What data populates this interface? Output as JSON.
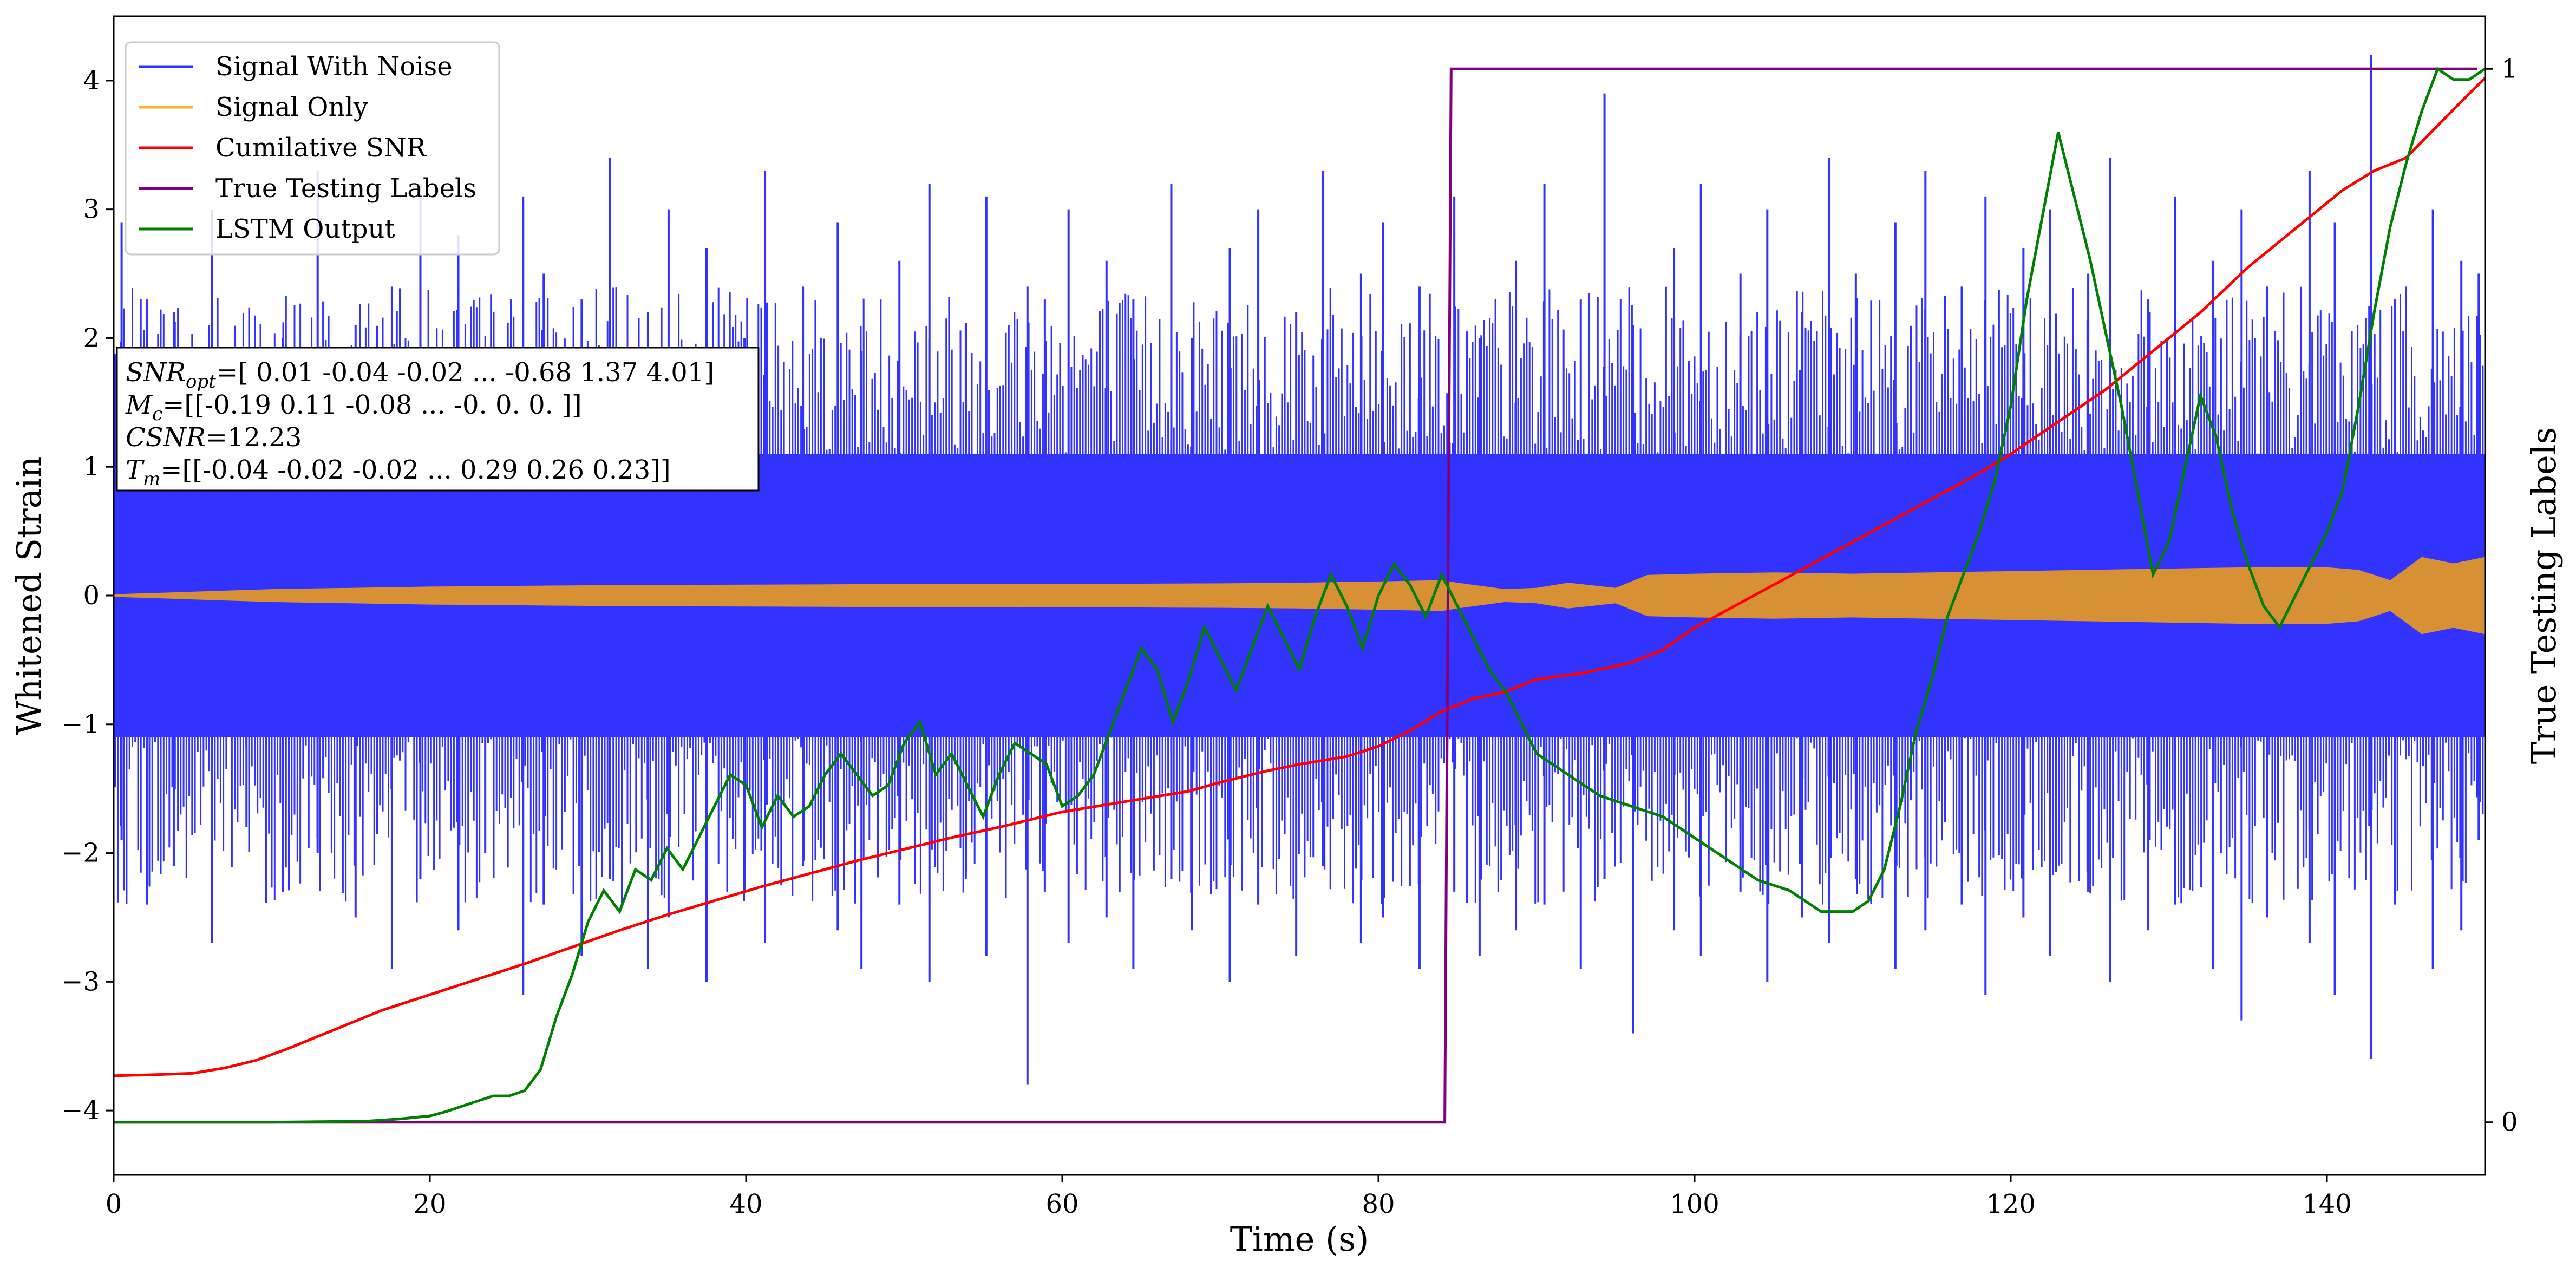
{
  "chart_data": {
    "type": "line",
    "xlabel": "Time (s)",
    "ylabel": "Whitened Strain",
    "y2label": "True Testing Labels",
    "xlim": [
      0,
      150
    ],
    "ylim": [
      -4.5,
      4.5
    ],
    "y2lim": [
      -0.05,
      1.05
    ],
    "x_ticks": [
      0,
      20,
      40,
      60,
      80,
      100,
      120,
      140
    ],
    "y_ticks": [
      -4,
      -3,
      -2,
      -1,
      0,
      1,
      2,
      3,
      4
    ],
    "y2_ticks": [
      0,
      1
    ],
    "grid": false,
    "legend_position": "top-left",
    "legend": [
      {
        "label": "Signal With Noise",
        "color": "#3333ff"
      },
      {
        "label": "Signal Only",
        "color": "#ffb22e"
      },
      {
        "label": "Cumilative SNR",
        "color": "#ff0000"
      },
      {
        "label": "True Testing Labels",
        "color": "#800080"
      },
      {
        "label": "LSTM Output",
        "color": "#008000"
      }
    ],
    "annotation": {
      "lines": [
        {
          "sym": "SNR",
          "sub": "opt",
          "rest": "=[ 0.01 -0.04 -0.02 ... -0.68  1.37  4.01]"
        },
        {
          "sym": "M",
          "sub": "c",
          "rest": "=[[-0.19  0.11 -0.08 ... -0.    0.    0.  ]]"
        },
        {
          "sym": "CSNR",
          "sub": "",
          "rest": "=12.23"
        },
        {
          "sym": "T",
          "sub": "m",
          "rest": "=[[-0.04 -0.02 -0.02 ...  0.29  0.26  0.23]]"
        }
      ]
    },
    "series": [
      {
        "name": "Signal With Noise",
        "color": "#3333ff",
        "axis": "left",
        "band": {
          "x": [
            0,
            10,
            20,
            30,
            40,
            50,
            60,
            70,
            80,
            90,
            100,
            110,
            120,
            130,
            140,
            150
          ],
          "upper": [
            1.1,
            1.1,
            1.1,
            1.1,
            1.1,
            1.1,
            1.1,
            1.1,
            1.1,
            1.1,
            1.1,
            1.1,
            1.1,
            1.1,
            1.1,
            1.1
          ],
          "lower": [
            -1.1,
            -1.1,
            -1.1,
            -1.1,
            -1.1,
            -1.1,
            -1.1,
            -1.1,
            -1.1,
            -1.1,
            -1.1,
            -1.1,
            -1.1,
            -1.1,
            -1.1,
            -1.1
          ]
        },
        "spike_x": [
          0.5,
          2.1,
          3.8,
          6.2,
          8.4,
          10.7,
          12.9,
          15.3,
          17.6,
          19.4,
          21.8,
          23.5,
          25.9,
          27.2,
          29.6,
          31.4,
          33.8,
          35.1,
          37.5,
          39.9,
          41.2,
          43.6,
          45.8,
          47.3,
          49.7,
          51.6,
          53.9,
          55.2,
          57.8,
          58.9,
          60.4,
          62.8,
          64.5,
          66.9,
          68.2,
          70.6,
          72.4,
          74.8,
          76.5,
          78.9,
          80.3,
          82.6,
          84.8,
          86.4,
          88.7,
          90.5,
          92.8,
          94.3,
          96.1,
          98.7,
          100.4,
          102.9,
          104.6,
          106.8,
          108.5,
          110.2,
          112.7,
          114.6,
          116.9,
          118.4,
          120.8,
          122.5,
          124.9,
          126.3,
          128.7,
          130.4,
          132.8,
          134.6,
          136.2,
          138.9,
          140.5,
          142.8,
          144.3,
          146.7,
          148.5,
          149.6
        ],
        "spike_hi": [
          2.9,
          2.3,
          2.2,
          3.0,
          1.8,
          2.0,
          3.3,
          2.1,
          2.4,
          3.2,
          2.8,
          1.9,
          3.1,
          2.5,
          2.3,
          3.4,
          2.2,
          3.0,
          2.7,
          2.0,
          3.3,
          2.4,
          2.9,
          1.9,
          2.6,
          3.2,
          2.1,
          3.1,
          2.4,
          2.3,
          3.0,
          2.6,
          2.3,
          3.2,
          2.0,
          2.7,
          3.0,
          2.2,
          3.3,
          2.5,
          2.9,
          2.4,
          3.1,
          2.0,
          2.6,
          3.2,
          2.3,
          3.9,
          2.1,
          2.7,
          3.2,
          2.5,
          3.0,
          2.2,
          3.4,
          2.5,
          2.9,
          3.3,
          2.4,
          3.1,
          2.7,
          3.0,
          2.5,
          3.4,
          2.3,
          3.1,
          2.6,
          3.0,
          2.4,
          3.3,
          2.9,
          4.2,
          2.3,
          3.0,
          2.6,
          2.5
        ],
        "spike_lo": [
          -1.9,
          -2.4,
          -2.1,
          -2.7,
          -1.8,
          -2.3,
          -2.0,
          -2.5,
          -2.9,
          -2.2,
          -2.6,
          -2.0,
          -3.1,
          -2.4,
          -2.8,
          -2.2,
          -2.9,
          -2.5,
          -3.0,
          -2.3,
          -2.7,
          -2.1,
          -2.6,
          -2.9,
          -2.4,
          -3.0,
          -2.2,
          -2.8,
          -3.8,
          -2.3,
          -2.7,
          -2.5,
          -2.9,
          -2.2,
          -2.6,
          -3.0,
          -2.4,
          -2.8,
          -2.1,
          -2.7,
          -2.5,
          -2.9,
          -2.3,
          -2.8,
          -2.6,
          -2.4,
          -2.9,
          -2.2,
          -3.4,
          -2.6,
          -2.8,
          -2.3,
          -3.0,
          -2.5,
          -2.7,
          -2.2,
          -2.9,
          -2.6,
          -2.4,
          -3.1,
          -2.5,
          -2.8,
          -2.3,
          -3.0,
          -2.6,
          -2.4,
          -2.9,
          -3.3,
          -2.5,
          -2.7,
          -3.1,
          -3.6,
          -2.4,
          -2.9,
          -2.6,
          -1.9
        ]
      },
      {
        "name": "Signal Only",
        "color": "#ffb22e",
        "axis": "left",
        "envelope": {
          "x": [
            0,
            5,
            10,
            20,
            30,
            40,
            50,
            60,
            70,
            75,
            80,
            84,
            85,
            88,
            90,
            92,
            95,
            97,
            100,
            105,
            110,
            115,
            120,
            125,
            130,
            135,
            140,
            142,
            144,
            146,
            148,
            150
          ],
          "amp": [
            0.01,
            0.03,
            0.05,
            0.07,
            0.08,
            0.085,
            0.09,
            0.09,
            0.095,
            0.1,
            0.11,
            0.12,
            0.1,
            0.05,
            0.06,
            0.1,
            0.06,
            0.16,
            0.17,
            0.18,
            0.17,
            0.18,
            0.19,
            0.2,
            0.21,
            0.22,
            0.22,
            0.2,
            0.12,
            0.3,
            0.25,
            0.3
          ]
        }
      },
      {
        "name": "Cumilative SNR",
        "color": "#ff0000",
        "axis": "left",
        "x": [
          0,
          3,
          5,
          7,
          9,
          11,
          13,
          15,
          17,
          20,
          23,
          26,
          29,
          32,
          35,
          38,
          41,
          44,
          47,
          50,
          53,
          56,
          60,
          63,
          65,
          68,
          70,
          73,
          75,
          78,
          80,
          82,
          84,
          86,
          88,
          90,
          93,
          96,
          98,
          100,
          103,
          106,
          109,
          112,
          115,
          118,
          120,
          123,
          126,
          129,
          132,
          135,
          137,
          139,
          141,
          143,
          145,
          147,
          149,
          150
        ],
        "y": [
          -3.73,
          -3.72,
          -3.71,
          -3.67,
          -3.61,
          -3.52,
          -3.42,
          -3.32,
          -3.22,
          -3.1,
          -2.98,
          -2.86,
          -2.73,
          -2.6,
          -2.48,
          -2.37,
          -2.26,
          -2.16,
          -2.06,
          -1.97,
          -1.88,
          -1.8,
          -1.68,
          -1.62,
          -1.58,
          -1.52,
          -1.45,
          -1.36,
          -1.31,
          -1.25,
          -1.17,
          -1.05,
          -0.9,
          -0.8,
          -0.75,
          -0.65,
          -0.6,
          -0.52,
          -0.42,
          -0.25,
          -0.05,
          0.15,
          0.35,
          0.55,
          0.75,
          0.95,
          1.1,
          1.35,
          1.6,
          1.9,
          2.2,
          2.55,
          2.75,
          2.95,
          3.15,
          3.3,
          3.4,
          3.65,
          3.9,
          4.02
        ]
      },
      {
        "name": "True Testing Labels",
        "color": "#800080",
        "axis": "right",
        "x": [
          0,
          84.2,
          84.6,
          149.5
        ],
        "y": [
          0,
          0,
          1,
          1
        ]
      },
      {
        "name": "LSTM Output",
        "color": "#008000",
        "axis": "right",
        "x": [
          0,
          10,
          16,
          18,
          20,
          21,
          22,
          23,
          24,
          25,
          26,
          27,
          28,
          29,
          30,
          31,
          32,
          33,
          34,
          35,
          36,
          37,
          38,
          39,
          40,
          41,
          42,
          43,
          44,
          45,
          46,
          47,
          48,
          49,
          50,
          51,
          52,
          53,
          54,
          55,
          56,
          57,
          58,
          59,
          60,
          61,
          62,
          63,
          64,
          65,
          66,
          67,
          68,
          69,
          70,
          71,
          72,
          73,
          74,
          75,
          76,
          77,
          78,
          79,
          80,
          81,
          82,
          83,
          84,
          85,
          86,
          87,
          88,
          89,
          90,
          92,
          94,
          96,
          98,
          100,
          102,
          104,
          106,
          108,
          110,
          111,
          112,
          113,
          114,
          115,
          116,
          117,
          118,
          119,
          120,
          121,
          122,
          123,
          124,
          125,
          126,
          127,
          128,
          129,
          130,
          131,
          132,
          133,
          134,
          135,
          136,
          137,
          138,
          139,
          140,
          141,
          142,
          143,
          144,
          145,
          146,
          147,
          148,
          149,
          150
        ],
        "y": [
          0,
          0,
          0.001,
          0.003,
          0.006,
          0.01,
          0.015,
          0.02,
          0.025,
          0.025,
          0.03,
          0.05,
          0.1,
          0.14,
          0.19,
          0.22,
          0.2,
          0.24,
          0.23,
          0.26,
          0.24,
          0.27,
          0.3,
          0.33,
          0.32,
          0.28,
          0.31,
          0.29,
          0.3,
          0.33,
          0.35,
          0.33,
          0.31,
          0.32,
          0.36,
          0.38,
          0.33,
          0.35,
          0.32,
          0.29,
          0.33,
          0.36,
          0.35,
          0.34,
          0.3,
          0.31,
          0.33,
          0.37,
          0.41,
          0.45,
          0.43,
          0.38,
          0.42,
          0.47,
          0.44,
          0.41,
          0.45,
          0.49,
          0.46,
          0.43,
          0.48,
          0.52,
          0.49,
          0.45,
          0.5,
          0.53,
          0.51,
          0.48,
          0.52,
          0.49,
          0.46,
          0.43,
          0.41,
          0.38,
          0.35,
          0.33,
          0.31,
          0.3,
          0.29,
          0.27,
          0.25,
          0.23,
          0.22,
          0.2,
          0.2,
          0.21,
          0.24,
          0.3,
          0.37,
          0.42,
          0.48,
          0.52,
          0.56,
          0.61,
          0.68,
          0.78,
          0.86,
          0.94,
          0.88,
          0.82,
          0.75,
          0.68,
          0.6,
          0.52,
          0.55,
          0.62,
          0.69,
          0.65,
          0.58,
          0.53,
          0.49,
          0.47,
          0.5,
          0.53,
          0.56,
          0.6,
          0.68,
          0.77,
          0.85,
          0.91,
          0.96,
          1.0,
          0.99,
          0.99,
          1.0
        ]
      }
    ]
  }
}
